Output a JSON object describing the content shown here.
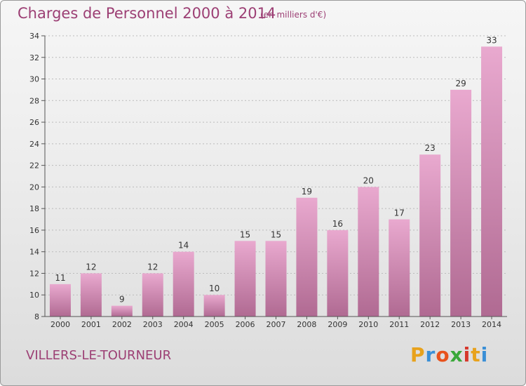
{
  "header": {
    "title": "Charges de Personnel 2000 à 2014",
    "subtitle": "(en milliers d'€)"
  },
  "footer": {
    "location": "VILLERS-LE-TOURNEUR",
    "logo_letters": [
      "P",
      "r",
      "o",
      "x",
      "i",
      "t",
      "i"
    ],
    "logo_colors": [
      "#e8a21c",
      "#3a8fd6",
      "#e8521c",
      "#3aa83a",
      "#d6382c",
      "#e8a21c",
      "#3a8fd6"
    ]
  },
  "colors": {
    "bar_top": "#e9a9cf",
    "bar_bottom": "#b06a92",
    "axis": "#555555",
    "grid": "#bbbbbb"
  },
  "chart_data": {
    "type": "bar",
    "title": "Charges de Personnel 2000 à 2014",
    "subtitle": "(en milliers d'€)",
    "categories": [
      "2000",
      "2001",
      "2002",
      "2003",
      "2004",
      "2005",
      "2006",
      "2007",
      "2008",
      "2009",
      "2010",
      "2011",
      "2012",
      "2013",
      "2014"
    ],
    "values": [
      11,
      12,
      9,
      12,
      14,
      10,
      15,
      15,
      19,
      16,
      20,
      17,
      23,
      29,
      33
    ],
    "ylim": [
      8,
      34
    ],
    "yticks": [
      8,
      10,
      12,
      14,
      16,
      18,
      20,
      22,
      24,
      26,
      28,
      30,
      32,
      34
    ],
    "grid": true,
    "xlabel": "",
    "ylabel": ""
  }
}
